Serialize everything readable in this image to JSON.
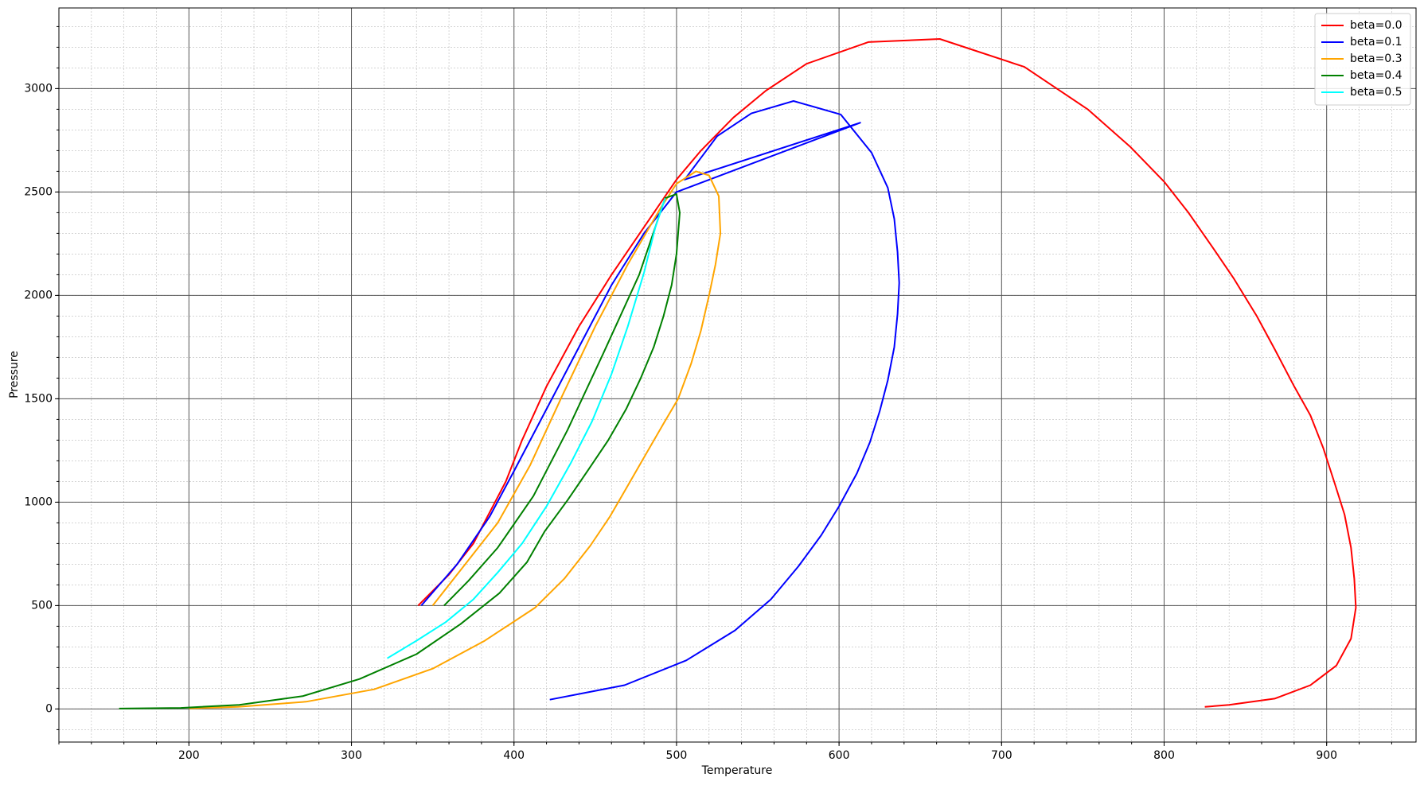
{
  "chart_data": {
    "type": "line",
    "xlabel": "Temperature",
    "ylabel": "Pressure",
    "xlim": [
      120,
      955
    ],
    "ylim": [
      -160,
      3390
    ],
    "xticks": [
      200,
      300,
      400,
      500,
      600,
      700,
      800,
      900
    ],
    "yticks": [
      0,
      500,
      1000,
      1500,
      2000,
      2500,
      3000
    ],
    "grid": true,
    "legend": "upper right",
    "series": [
      {
        "name": "beta=0.0",
        "color": "#ff0000",
        "x": [
          341,
          360,
          375,
          385,
          395,
          405,
          420,
          440,
          460,
          480,
          500,
          515,
          535,
          555,
          580,
          618,
          662,
          714,
          753,
          779,
          800,
          815,
          830,
          843,
          857,
          868,
          880,
          890,
          898,
          905,
          911,
          915,
          917,
          918,
          915,
          906,
          890,
          868,
          840,
          825
        ],
        "values": [
          500,
          650,
          800,
          950,
          1100,
          1300,
          1560,
          1850,
          2100,
          2330,
          2560,
          2700,
          2860,
          2990,
          3120,
          3225,
          3240,
          3105,
          2900,
          2720,
          2550,
          2400,
          2230,
          2080,
          1900,
          1740,
          1560,
          1420,
          1260,
          1090,
          940,
          780,
          630,
          490,
          340,
          210,
          115,
          50,
          20,
          10
        ]
      },
      {
        "name": "beta=0.1",
        "color": "#0000ff",
        "x": [
          343,
          365,
          385,
          400,
          420,
          440,
          460,
          480,
          490,
          500,
          613,
          505,
          525,
          546,
          572,
          601,
          620,
          630,
          634,
          636,
          637,
          636,
          634,
          630,
          625,
          619,
          611,
          600,
          589,
          575,
          558,
          536,
          506,
          468,
          422
        ],
        "values": [
          500,
          700,
          930,
          1150,
          1450,
          1750,
          2050,
          2300,
          2400,
          2500,
          2835,
          2560,
          2770,
          2880,
          2940,
          2875,
          2690,
          2520,
          2370,
          2210,
          2060,
          1910,
          1750,
          1590,
          1440,
          1290,
          1140,
          980,
          840,
          690,
          530,
          380,
          235,
          115,
          45
        ]
      },
      {
        "name": "beta=0.3",
        "color": "#ffa500",
        "x": [
          350,
          370,
          390,
          410,
          430,
          450,
          470,
          490,
          500,
          512,
          520,
          526,
          527,
          524,
          520,
          515,
          509,
          501,
          492,
          481,
          470,
          459,
          447,
          431,
          413,
          382,
          350,
          314,
          272,
          230,
          200
        ],
        "values": [
          500,
          700,
          900,
          1180,
          1520,
          1850,
          2150,
          2420,
          2540,
          2600,
          2580,
          2480,
          2300,
          2150,
          2000,
          1830,
          1670,
          1500,
          1380,
          1230,
          1080,
          930,
          790,
          630,
          490,
          330,
          195,
          95,
          35,
          10,
          3
        ]
      },
      {
        "name": "beta=0.4",
        "color": "#008000",
        "x": [
          357,
          372,
          390,
          412,
          433,
          455,
          477,
          493,
          500,
          502,
          500,
          497,
          492,
          486,
          478,
          469,
          458,
          446,
          433,
          419,
          408,
          391,
          367,
          340,
          305,
          270,
          231,
          195,
          157
        ],
        "values": [
          500,
          620,
          780,
          1030,
          1350,
          1720,
          2100,
          2470,
          2490,
          2400,
          2200,
          2050,
          1900,
          1750,
          1600,
          1450,
          1300,
          1160,
          1010,
          860,
          710,
          560,
          410,
          265,
          145,
          62,
          20,
          5,
          2
        ]
      },
      {
        "name": "beta=0.5",
        "color": "#00ffff",
        "x": [
          322,
          340,
          358,
          375,
          390,
          405,
          420,
          435,
          448,
          460,
          470,
          480,
          487,
          493
        ],
        "values": [
          245,
          330,
          420,
          530,
          660,
          800,
          980,
          1190,
          1390,
          1620,
          1850,
          2110,
          2330,
          2470
        ]
      }
    ]
  }
}
